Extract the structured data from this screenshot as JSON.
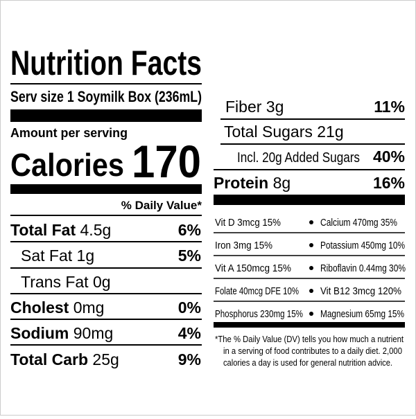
{
  "header": {
    "title": "Nutrition Facts",
    "serving_size": "Serv size 1 Soymilk Box (236mL)",
    "amount_per_serving": "Amount per serving",
    "calories_label": "Calories",
    "calories_value": "170",
    "daily_value_heading": "% Daily Value*"
  },
  "nutrients": [
    {
      "label": "Total Fat",
      "amount": "4.5g",
      "dv": "6%"
    },
    {
      "label": "Sat Fat",
      "amount": "1g",
      "dv": "5%"
    },
    {
      "label": "Trans Fat",
      "amount": "0g"
    },
    {
      "label": "Cholest",
      "amount": "0mg",
      "dv": "0%"
    },
    {
      "label": "Sodium",
      "amount": "90mg",
      "dv": "4%"
    },
    {
      "label": "Total Carb",
      "amount": "25g",
      "dv": "9%"
    },
    {
      "label": "Fiber",
      "amount": "3g",
      "dv": "11%"
    },
    {
      "label": "Total Sugars",
      "amount": "21g"
    },
    {
      "label": "Incl. 20g Added Sugars",
      "dv": "40%"
    },
    {
      "label": "Protein",
      "amount": "8g",
      "dv": "16%"
    }
  ],
  "micronutrients": [
    [
      "Vit D 3mcg 15%",
      "Calcium 470mg 35%"
    ],
    [
      "Iron 3mg 15%",
      "Potassium 450mg 10%"
    ],
    [
      "Vit A 150mcg 15%",
      "Riboflavin 0.44mg 30%"
    ],
    [
      "Folate 40mcg DFE 10%",
      "Vit B12 3mcg 120%"
    ],
    [
      "Phosphorus 230mg 15%",
      "Magnesium 65mg 15%"
    ]
  ],
  "footnote": [
    "*The % Daily Value (DV) tells you how much a nutrient",
    "in a serving of food contributes to a daily diet. 2,000",
    "calories a day is used for general nutrition advice."
  ]
}
